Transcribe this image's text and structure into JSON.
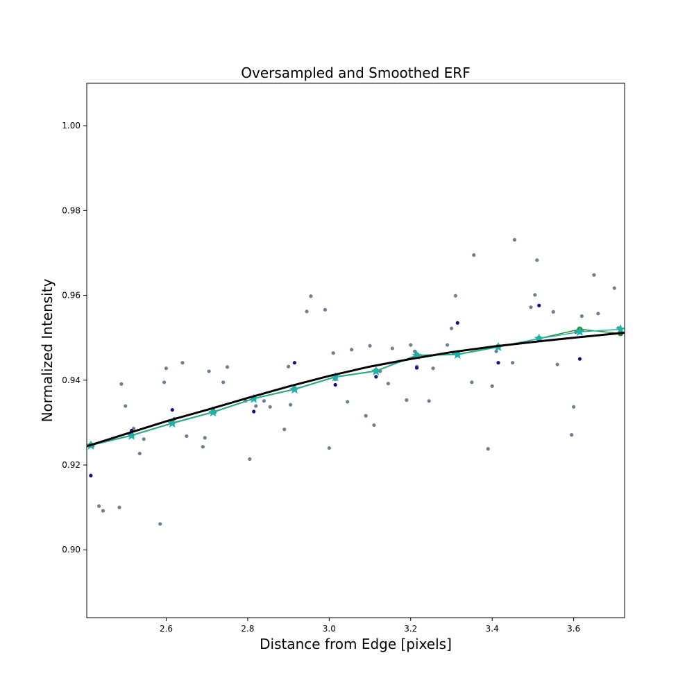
{
  "chart_data": {
    "type": "scatter",
    "title": "Oversampled and Smoothed ERF",
    "xlabel": "Distance from Edge [pixels]",
    "ylabel": "Normalized Intensity",
    "xlim": [
      2.405,
      3.725
    ],
    "ylim": [
      0.884,
      1.01
    ],
    "xticks": [
      2.6,
      2.8,
      3.0,
      3.2,
      3.4,
      3.6
    ],
    "xtick_labels": [
      "2.6",
      "2.8",
      "3.0",
      "3.2",
      "3.4",
      "3.6"
    ],
    "yticks": [
      0.9,
      0.92,
      0.94,
      0.96,
      0.98,
      1.0
    ],
    "ytick_labels": [
      "0.90",
      "0.92",
      "0.94",
      "0.96",
      "0.98",
      "1.00"
    ],
    "grid": false,
    "colors": {
      "raw": "#6c7f94",
      "binned": "#10107a",
      "oversampled": "#2e8b2e",
      "smoothed": "#20b2aa",
      "fit": "#000000"
    },
    "series": [
      {
        "style": "raw-points",
        "x": [
          2.42,
          2.435,
          2.445,
          2.485,
          2.49,
          2.5,
          2.52,
          2.535,
          2.545,
          2.585,
          2.595,
          2.6,
          2.62,
          2.64,
          2.65,
          2.69,
          2.695,
          2.705,
          2.72,
          2.74,
          2.75,
          2.795,
          2.805,
          2.82,
          2.84,
          2.855,
          2.89,
          2.9,
          2.905,
          2.915,
          2.945,
          2.955,
          2.99,
          3.0,
          3.01,
          3.015,
          3.045,
          3.055,
          3.09,
          3.1,
          3.11,
          3.125,
          3.145,
          3.155,
          3.19,
          3.2,
          3.21,
          3.215,
          3.245,
          3.255,
          3.29,
          3.3,
          3.305,
          3.31,
          3.35,
          3.355,
          3.39,
          3.4,
          3.41,
          3.45,
          3.455,
          3.495,
          3.505,
          3.51,
          3.515,
          3.55,
          3.56,
          3.595,
          3.6,
          3.605,
          3.62,
          3.65,
          3.66,
          3.7,
          3.71
        ],
        "y": [
          0.9245,
          0.9103,
          0.9092,
          0.91,
          0.9391,
          0.9339,
          0.9286,
          0.9227,
          0.9261,
          0.9061,
          0.9395,
          0.9428,
          0.9309,
          0.9441,
          0.9268,
          0.9243,
          0.9264,
          0.9421,
          0.9325,
          0.9395,
          0.9431,
          0.9351,
          0.9214,
          0.9339,
          0.9351,
          0.9337,
          0.9284,
          0.9432,
          0.9342,
          0.9379,
          0.9562,
          0.9598,
          0.9566,
          0.924,
          0.9464,
          0.9402,
          0.9349,
          0.9472,
          0.9316,
          0.9481,
          0.9294,
          0.9421,
          0.9392,
          0.9475,
          0.9353,
          0.9483,
          0.9468,
          0.9432,
          0.9351,
          0.9428,
          0.9483,
          0.9522,
          0.9464,
          0.9599,
          0.9395,
          0.9695,
          0.9238,
          0.9386,
          0.9468,
          0.9441,
          0.9731,
          0.9572,
          0.9601,
          0.9683,
          0.9501,
          0.9561,
          0.9437,
          0.9271,
          0.9337,
          0.9513,
          0.9551,
          0.9648,
          0.9557,
          0.9617,
          0.9523
        ]
      },
      {
        "style": "binned-points",
        "x": [
          2.415,
          2.515,
          2.615,
          2.715,
          2.815,
          2.915,
          3.015,
          3.115,
          3.215,
          3.315,
          3.415,
          3.515,
          3.615,
          3.715
        ],
        "y": [
          0.9175,
          0.9281,
          0.933,
          0.9333,
          0.9326,
          0.9441,
          0.9389,
          0.9408,
          0.9429,
          0.9535,
          0.9441,
          0.9576,
          0.945,
          0.9511
        ]
      },
      {
        "style": "oversampled-line",
        "x": [
          2.415,
          2.515,
          2.615,
          2.715,
          2.815,
          2.915,
          3.015,
          3.115,
          3.215,
          3.315,
          3.415,
          3.515,
          3.615,
          3.715
        ],
        "y": [
          0.9247,
          0.927,
          0.9299,
          0.9325,
          0.9357,
          0.9379,
          0.9408,
          0.9422,
          0.9459,
          0.9461,
          0.9479,
          0.9498,
          0.952,
          0.951
        ]
      },
      {
        "style": "smoothed-line",
        "x": [
          2.415,
          2.515,
          2.615,
          2.715,
          2.815,
          2.915,
          3.015,
          3.115,
          3.215,
          3.315,
          3.415,
          3.515,
          3.615,
          3.715
        ],
        "y": [
          0.9246,
          0.9269,
          0.9298,
          0.9324,
          0.9356,
          0.9378,
          0.9407,
          0.9421,
          0.9458,
          0.946,
          0.9478,
          0.9498,
          0.9514,
          0.952
        ]
      },
      {
        "style": "fit-curve",
        "x": [
          2.405,
          2.5,
          2.6,
          2.7,
          2.8,
          2.9,
          3.0,
          3.1,
          3.2,
          3.3,
          3.4,
          3.5,
          3.6,
          3.725
        ],
        "y": [
          0.9244,
          0.9273,
          0.9303,
          0.933,
          0.9358,
          0.9385,
          0.941,
          0.9432,
          0.945,
          0.9466,
          0.9479,
          0.949,
          0.95,
          0.9512
        ]
      }
    ]
  }
}
